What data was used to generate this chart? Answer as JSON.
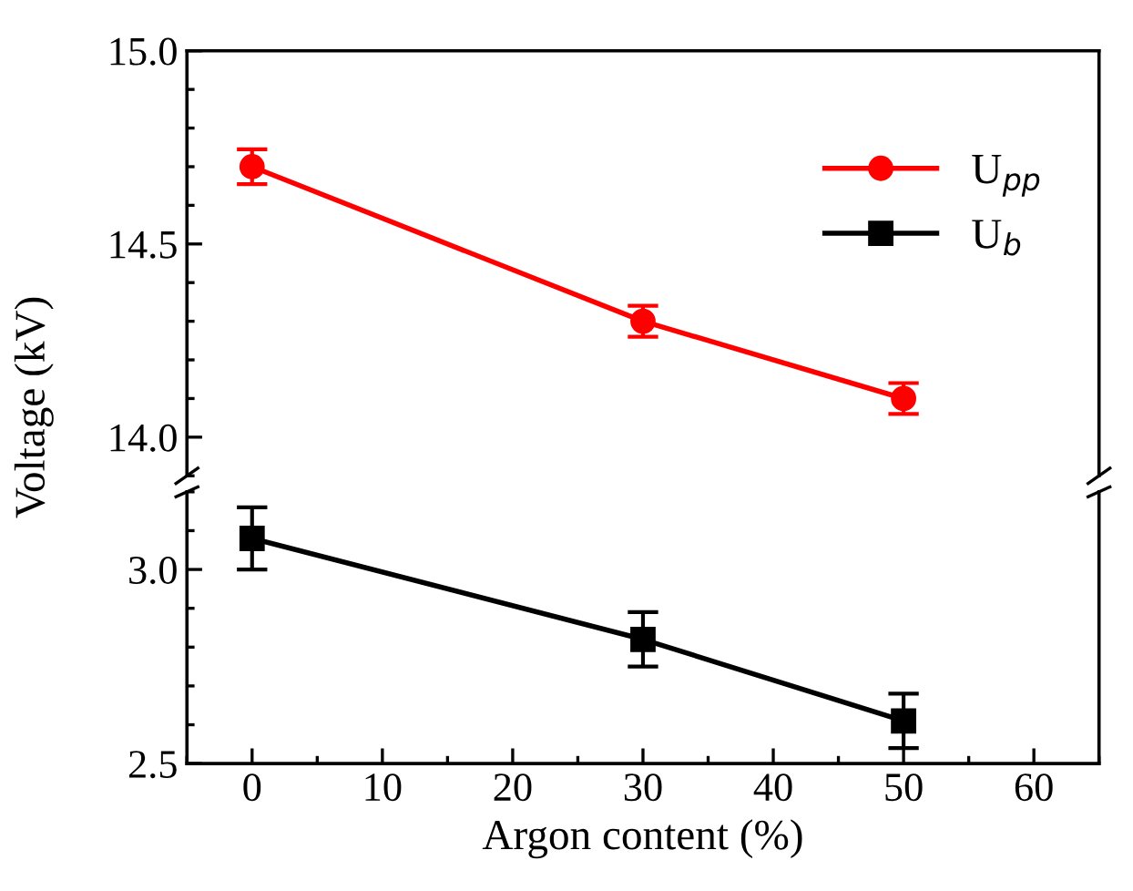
{
  "chart_data": [
    {
      "type": "line",
      "ylabel": "Voltage (kV)",
      "xlim": [
        -5,
        65
      ],
      "ylim": [
        13.9,
        15.0
      ],
      "yticks": [
        {
          "value": 14.0,
          "label": "14.0"
        },
        {
          "value": 14.5,
          "label": "14.5"
        },
        {
          "value": 15.0,
          "label": "15.0"
        }
      ],
      "tick_labels": "y",
      "legend": "top right",
      "x": [
        0,
        30,
        50
      ],
      "series": [
        {
          "name": "U$_{pp}$",
          "color": "#ff0000",
          "marker": "circle",
          "values": [
            14.7,
            14.3,
            14.1
          ],
          "errors": [
            0.045,
            0.04,
            0.04
          ]
        }
      ]
    },
    {
      "type": "line",
      "xlabel": "Argon content (%)",
      "xlim": [
        -5,
        65
      ],
      "xticks": [
        0,
        10,
        20,
        30,
        40,
        50,
        60
      ],
      "ylim": [
        2.5,
        3.2
      ],
      "yticks": [
        {
          "value": 2.5,
          "label": "2.5"
        },
        {
          "value": 3.0,
          "label": "3.0"
        }
      ],
      "x": [
        0,
        30,
        50
      ],
      "series": [
        {
          "name": "U$_{b}$",
          "color": "#000000",
          "marker": "square",
          "values": [
            3.08,
            2.82,
            2.61
          ],
          "errors": [
            0.08,
            0.07,
            0.07
          ]
        }
      ]
    }
  ]
}
